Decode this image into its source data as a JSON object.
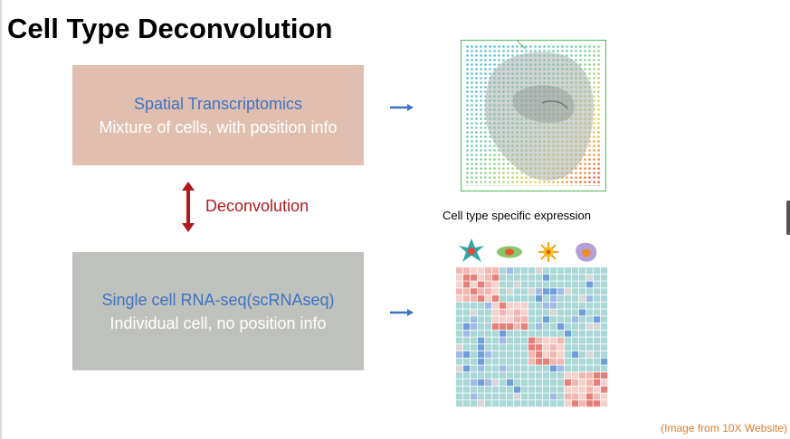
{
  "slide": {
    "title": "Cell Type Deconvolution",
    "spatial_box": {
      "title": "Spatial Transcriptomics",
      "description": "Mixture of cells, with position info",
      "color": "#e0bfb0"
    },
    "deconvolution_label": "Deconvolution",
    "sc_box": {
      "title": "Single cell RNA-seq(scRNAseq)",
      "description": "Individual cell, no position info",
      "color": "#bfc1bc"
    },
    "expression_caption": "Cell type specific expression",
    "credit": "(Image from 10X Website)"
  },
  "colors": {
    "title_text": "#3e74c2",
    "desc_text": "#ffffff",
    "deconvolution": "#b3191c",
    "arrow": "#3e74c2",
    "credit": "#e07a2e",
    "frame": "#5dbb63"
  },
  "icons": [
    "double-arrow-icon",
    "right-arrow-icon",
    "spatial-tissue-image",
    "cell-type-icons",
    "expression-heatmap-image"
  ]
}
